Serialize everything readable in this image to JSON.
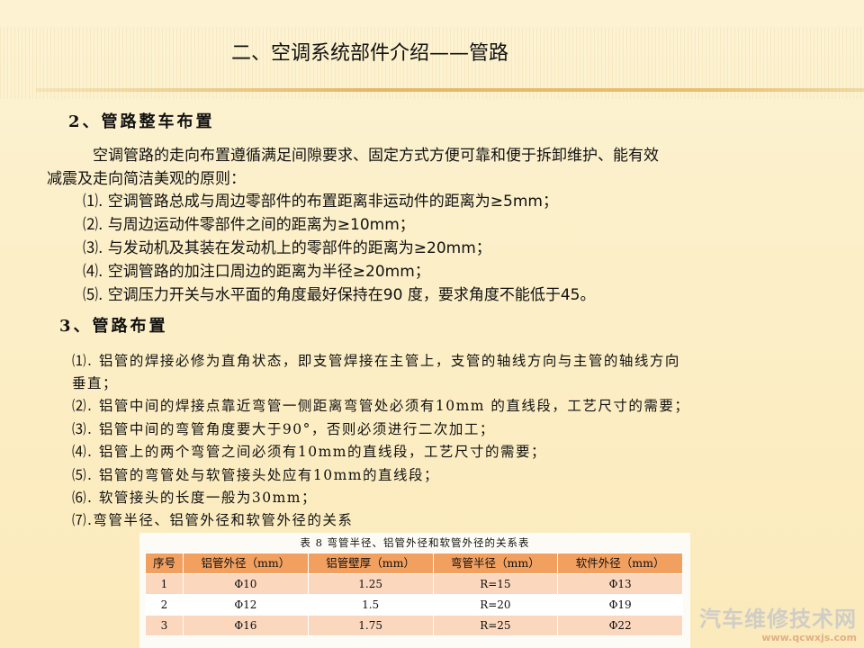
{
  "title": "二、空调系统部件介绍——管路",
  "section2": {
    "heading": "2、管路整车布置",
    "intro1": "空调管路的走向布置遵循满足间隙要求、固定方式方便可靠和便于拆卸维护、能有效",
    "intro2": "减震及走向简洁美观的原则：",
    "items": [
      "⑴. 空调管路总成与周边零部件的布置距离非运动件的距离为≥5mm；",
      "⑵. 与周边运动件零部件之间的距离为≥10mm；",
      "⑶. 与发动机及其装在发动机上的零部件的距离为≥20mm；",
      "⑷. 空调管路的加注口周边的距离为半径≥20mm；",
      "⑸. 空调压力开关与水平面的角度最好保持在90  度，要求角度不能低于45。"
    ]
  },
  "section3": {
    "heading": "3、管路布置",
    "items": [
      "⑴. 铝管的焊接必修为直角状态，即支管焊接在主管上，支管的轴线方向与主管的轴线方向",
      "垂直；",
      "⑵. 铝管中间的焊接点靠近弯管一侧距离弯管处必须有10mm 的直线段，工艺尺寸的需要；",
      "⑶. 铝管中间的弯管角度要大于90°，否则必须进行二次加工；",
      "⑷. 铝管上的两个弯管之间必须有10mm的直线段，工艺尺寸的需要；",
      "⑸. 铝管的弯管处与软管接头处应有10mm的直线段；",
      "⑹. 软管接头的长度一般为30mm；",
      "⑺.弯管半径、铝管外径和软管外径的关系"
    ]
  },
  "table": {
    "caption": "表 8   弯管半径、铝管外径和软管外径的关系表",
    "headers": [
      "序号",
      "铝管外径（mm）",
      "铝管壁厚（mm）",
      "弯管半径（mm）",
      "软件外径（mm）"
    ],
    "rows": [
      [
        "1",
        "Φ10",
        "1.25",
        "R=15",
        "Φ13"
      ],
      [
        "2",
        "Φ12",
        "1.5",
        "R=20",
        "Φ19"
      ],
      [
        "3",
        "Φ16",
        "1.75",
        "R=25",
        "Φ22"
      ]
    ]
  },
  "watermark": {
    "name": "汽车维修技术网",
    "url": "www.qcwxjs.com"
  },
  "colors": {
    "header": "#f2a060",
    "row_alt": "#fbd7bd",
    "background": "#fcefc8"
  }
}
